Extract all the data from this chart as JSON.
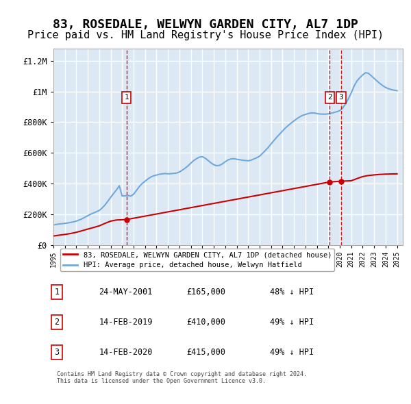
{
  "title": "83, ROSEDALE, WELWYN GARDEN CITY, AL7 1DP",
  "subtitle": "Price paid vs. HM Land Registry's House Price Index (HPI)",
  "title_fontsize": 13,
  "subtitle_fontsize": 11,
  "ylabel_ticks": [
    "£0",
    "£200K",
    "£400K",
    "£600K",
    "£800K",
    "£1M",
    "£1.2M"
  ],
  "ytick_vals": [
    0,
    200000,
    400000,
    600000,
    800000,
    1000000,
    1200000
  ],
  "ylim": [
    0,
    1280000
  ],
  "xlim_start": 1995.0,
  "xlim_end": 2025.5,
  "plot_bg_color": "#dce9f5",
  "grid_color": "#ffffff",
  "hpi_color": "#6fa8dc",
  "price_color": "#cc0000",
  "sale_marker_color": "#cc0000",
  "vline_color": "#cc0000",
  "annotation_box_color": "#cc0000",
  "sales": [
    {
      "date_x": 2001.38,
      "price": 165000,
      "label": "1"
    },
    {
      "date_x": 2019.12,
      "price": 410000,
      "label": "2"
    },
    {
      "date_x": 2020.12,
      "price": 415000,
      "label": "3"
    }
  ],
  "legend_entries": [
    {
      "label": "83, ROSEDALE, WELWYN GARDEN CITY, AL7 1DP (detached house)",
      "color": "#cc0000"
    },
    {
      "label": "HPI: Average price, detached house, Welwyn Hatfield",
      "color": "#6fa8dc"
    }
  ],
  "table_rows": [
    {
      "num": "1",
      "date": "24-MAY-2001",
      "price": "£165,000",
      "hpi": "48% ↓ HPI"
    },
    {
      "num": "2",
      "date": "14-FEB-2019",
      "price": "£410,000",
      "hpi": "49% ↓ HPI"
    },
    {
      "num": "3",
      "date": "14-FEB-2020",
      "price": "£415,000",
      "hpi": "49% ↓ HPI"
    }
  ],
  "footer": "Contains HM Land Registry data © Crown copyright and database right 2024.\nThis data is licensed under the Open Government Licence v3.0.",
  "hpi_x": [
    1995.0,
    1995.25,
    1995.5,
    1995.75,
    1996.0,
    1996.25,
    1996.5,
    1996.75,
    1997.0,
    1997.25,
    1997.5,
    1997.75,
    1998.0,
    1998.25,
    1998.5,
    1998.75,
    1999.0,
    1999.25,
    1999.5,
    1999.75,
    2000.0,
    2000.25,
    2000.5,
    2000.75,
    2001.0,
    2001.25,
    2001.5,
    2001.75,
    2002.0,
    2002.25,
    2002.5,
    2002.75,
    2003.0,
    2003.25,
    2003.5,
    2003.75,
    2004.0,
    2004.25,
    2004.5,
    2004.75,
    2005.0,
    2005.25,
    2005.5,
    2005.75,
    2006.0,
    2006.25,
    2006.5,
    2006.75,
    2007.0,
    2007.25,
    2007.5,
    2007.75,
    2008.0,
    2008.25,
    2008.5,
    2008.75,
    2009.0,
    2009.25,
    2009.5,
    2009.75,
    2010.0,
    2010.25,
    2010.5,
    2010.75,
    2011.0,
    2011.25,
    2011.5,
    2011.75,
    2012.0,
    2012.25,
    2012.5,
    2012.75,
    2013.0,
    2013.25,
    2013.5,
    2013.75,
    2014.0,
    2014.25,
    2014.5,
    2014.75,
    2015.0,
    2015.25,
    2015.5,
    2015.75,
    2016.0,
    2016.25,
    2016.5,
    2016.75,
    2017.0,
    2017.25,
    2017.5,
    2017.75,
    2018.0,
    2018.25,
    2018.5,
    2018.75,
    2019.0,
    2019.25,
    2019.5,
    2019.75,
    2020.0,
    2020.25,
    2020.5,
    2020.75,
    2021.0,
    2021.25,
    2021.5,
    2021.75,
    2022.0,
    2022.25,
    2022.5,
    2022.75,
    2023.0,
    2023.25,
    2023.5,
    2023.75,
    2024.0,
    2024.25,
    2024.5,
    2024.75,
    2025.0
  ],
  "hpi_y": [
    130000,
    133000,
    136000,
    138000,
    140000,
    143000,
    146000,
    150000,
    155000,
    162000,
    170000,
    180000,
    190000,
    200000,
    208000,
    216000,
    224000,
    240000,
    260000,
    285000,
    310000,
    335000,
    358000,
    385000,
    318000,
    320000,
    322000,
    318000,
    330000,
    355000,
    380000,
    400000,
    415000,
    430000,
    442000,
    450000,
    455000,
    460000,
    463000,
    465000,
    463000,
    464000,
    466000,
    468000,
    475000,
    487000,
    500000,
    515000,
    533000,
    550000,
    562000,
    572000,
    575000,
    565000,
    550000,
    535000,
    522000,
    516000,
    518000,
    528000,
    542000,
    554000,
    560000,
    562000,
    558000,
    555000,
    552000,
    550000,
    548000,
    552000,
    560000,
    568000,
    578000,
    596000,
    615000,
    635000,
    658000,
    680000,
    702000,
    722000,
    742000,
    762000,
    778000,
    794000,
    808000,
    822000,
    834000,
    844000,
    850000,
    856000,
    860000,
    860000,
    856000,
    853000,
    852000,
    852000,
    854000,
    858000,
    863000,
    868000,
    875000,
    892000,
    918000,
    952000,
    990000,
    1035000,
    1068000,
    1090000,
    1108000,
    1122000,
    1118000,
    1102000,
    1085000,
    1068000,
    1052000,
    1038000,
    1026000,
    1018000,
    1012000,
    1008000,
    1005000
  ],
  "price_x": [
    1995.0,
    1995.5,
    1996.0,
    1996.5,
    1997.0,
    1997.5,
    1998.0,
    1998.5,
    1999.0,
    1999.5,
    2000.0,
    2000.5,
    2001.38,
    2019.12,
    2020.12,
    2021.0,
    2021.5,
    2022.0,
    2022.5,
    2023.0,
    2023.5,
    2024.0,
    2024.5,
    2025.0
  ],
  "price_y": [
    58000,
    63000,
    68000,
    74000,
    82000,
    92000,
    103000,
    113000,
    124000,
    140000,
    155000,
    162000,
    165000,
    410000,
    415000,
    418000,
    432000,
    445000,
    452000,
    456000,
    459000,
    461000,
    462000,
    463000
  ]
}
